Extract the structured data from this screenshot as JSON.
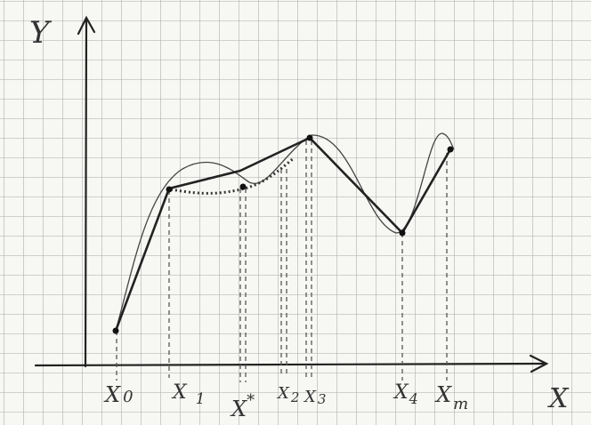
{
  "axes": {
    "y_label": "Y",
    "x_label": "X"
  },
  "ticks": [
    {
      "main": "X",
      "sub": "0"
    },
    {
      "main": "X",
      "sub": "1"
    },
    {
      "main": "X",
      "sup": "*"
    },
    {
      "main": "X",
      "sub": "2"
    },
    {
      "main": "X",
      "sub": "3"
    },
    {
      "main": "X",
      "sub": "4"
    },
    {
      "main": "X",
      "sub": "m"
    }
  ]
}
